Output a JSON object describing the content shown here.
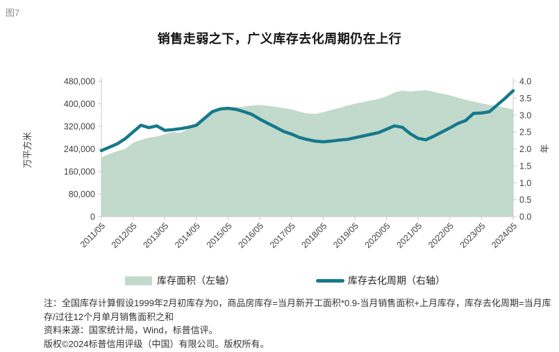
{
  "figure_label": "图7",
  "chart_data": {
    "type": "area+line combo",
    "title": "销售走弱之下，广义库存去化周期仍在上行",
    "grid": false,
    "legend_position": "bottom",
    "x_tick_labels": [
      "2011/05",
      "2012/05",
      "2013/05",
      "2014/05",
      "2015/05",
      "2016/05",
      "2017/05",
      "2018/05",
      "2019/05",
      "2020/05",
      "2021/05",
      "2022/05",
      "2023/05",
      "2024/05"
    ],
    "x": [
      "2011/05",
      "2011/08",
      "2011/11",
      "2012/02",
      "2012/05",
      "2012/08",
      "2012/11",
      "2013/02",
      "2013/05",
      "2013/08",
      "2013/11",
      "2014/02",
      "2014/05",
      "2014/08",
      "2014/11",
      "2015/02",
      "2015/05",
      "2015/08",
      "2015/11",
      "2016/02",
      "2016/05",
      "2016/08",
      "2016/11",
      "2017/02",
      "2017/05",
      "2017/08",
      "2017/11",
      "2018/02",
      "2018/05",
      "2018/08",
      "2018/11",
      "2019/02",
      "2019/05",
      "2019/08",
      "2019/11",
      "2020/02",
      "2020/05",
      "2020/08",
      "2020/11",
      "2021/02",
      "2021/05",
      "2021/08",
      "2021/11",
      "2022/02",
      "2022/05",
      "2022/08",
      "2022/11",
      "2023/02",
      "2023/05",
      "2023/08",
      "2023/11",
      "2024/02",
      "2024/05"
    ],
    "series": [
      {
        "name": "库存面积",
        "legend_label": "库存面积（左轴）",
        "type": "area",
        "axis": "left",
        "color": "#c2dacc",
        "values": [
          210000,
          222000,
          232000,
          240000,
          262000,
          272000,
          280000,
          284000,
          292000,
          300000,
          297000,
          312000,
          332000,
          354000,
          372000,
          382000,
          386000,
          388000,
          390000,
          394000,
          396000,
          393000,
          389000,
          385000,
          380000,
          372000,
          366000,
          364000,
          370000,
          378000,
          385000,
          393000,
          400000,
          406000,
          412000,
          417000,
          426000,
          440000,
          447000,
          443000,
          446000,
          448000,
          442000,
          436000,
          430000,
          422000,
          414000,
          408000,
          402000,
          396000,
          392000,
          386000,
          380000
        ]
      },
      {
        "name": "库存去化周期",
        "legend_label": "库存去化周期（右轴）",
        "type": "line",
        "axis": "right",
        "color": "#15798b",
        "values": [
          1.95,
          2.05,
          2.15,
          2.3,
          2.5,
          2.7,
          2.63,
          2.68,
          2.55,
          2.57,
          2.6,
          2.64,
          2.7,
          2.9,
          3.1,
          3.18,
          3.2,
          3.17,
          3.1,
          3.02,
          2.88,
          2.76,
          2.64,
          2.52,
          2.44,
          2.34,
          2.28,
          2.23,
          2.21,
          2.23,
          2.26,
          2.28,
          2.33,
          2.38,
          2.43,
          2.48,
          2.58,
          2.68,
          2.64,
          2.45,
          2.31,
          2.27,
          2.38,
          2.5,
          2.62,
          2.75,
          2.84,
          3.05,
          3.06,
          3.1,
          3.3,
          3.5,
          3.72
        ]
      }
    ],
    "left_axis": {
      "label": "万平方米",
      "min": 0,
      "max": 480000,
      "tick_labels": [
        "0",
        "80,000",
        "160,000",
        "240,000",
        "320,000",
        "400,000",
        "480,000"
      ]
    },
    "right_axis": {
      "label": "年",
      "min": 0,
      "max": 4.0,
      "tick_labels": [
        "0.0",
        "0.5",
        "1.0",
        "1.5",
        "2.0",
        "2.5",
        "3.0",
        "3.5",
        "4.0"
      ]
    }
  },
  "notes": {
    "note": "注：全国库存计算假设1999年2月初库存为0，商品房库存=当月新开工面积*0.9-当月销售面积+上月库存，库存去化周期=当月库存/过往12个月单月销售面积之和",
    "source": "资料来源：国家统计局，Wind，标普信评。",
    "copyright": "版权©2024标普信用评级（中国）有限公司。版权所有。"
  },
  "colors": {
    "area_fill": "#c2dacc",
    "line": "#15798b",
    "axis_line": "#c9c9c9",
    "tick_text": "#3f3f3f"
  }
}
